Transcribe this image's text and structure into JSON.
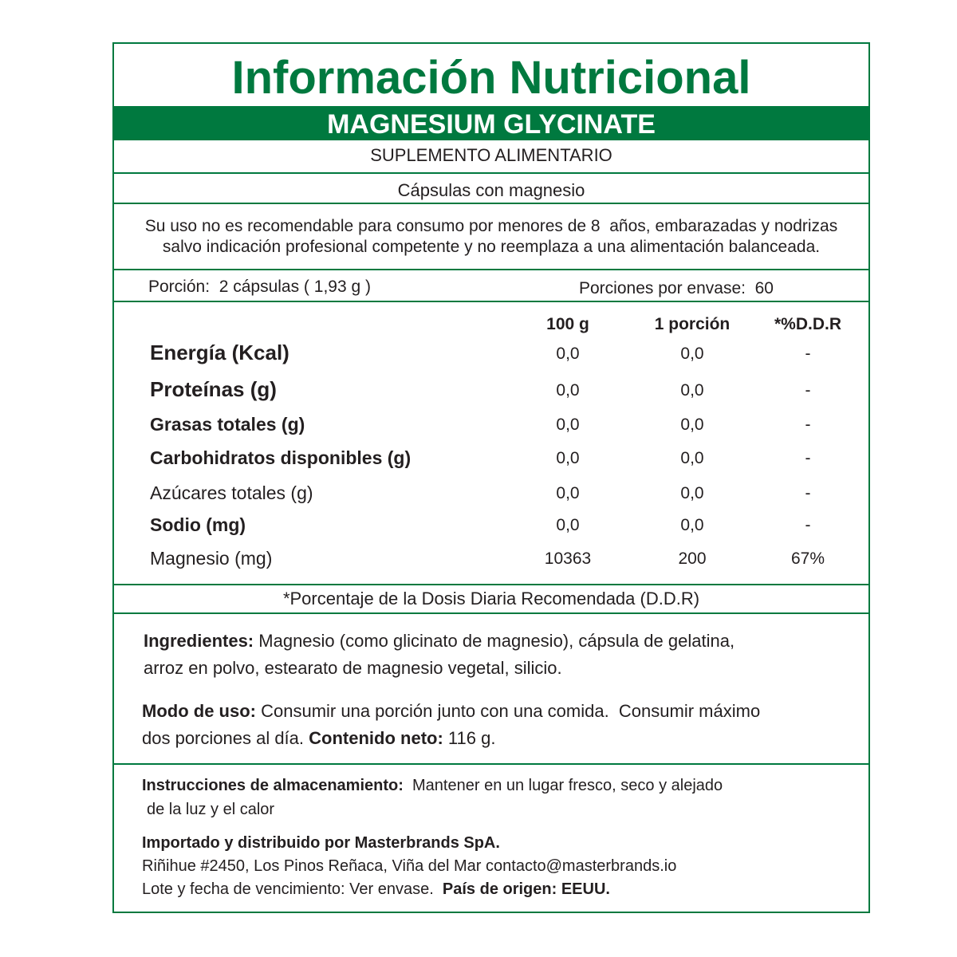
{
  "header": {
    "title": "Información Nutricional",
    "product": "MAGNESIUM GLYCINATE",
    "category": "SUPLEMENTO ALIMENTARIO",
    "subtitle": "Cápsulas con magnesio"
  },
  "warning": [
    "Su uso no es recomendable para consumo por menores de 8  años, embarazadas y nodrizas",
    "salvo indicación profesional competente y no reemplaza a una alimentación balanceada."
  ],
  "serving": {
    "portion": "Porción:  2 cápsulas ( 1,93 g )",
    "servings": "Porciones por envase:  60"
  },
  "table": {
    "columns": [
      "100 g",
      "1 porción",
      "*%D.D.R"
    ],
    "rows": [
      {
        "label": "Energía (Kcal)",
        "values": [
          "0,0",
          "0,0",
          "-"
        ]
      },
      {
        "label": "Proteínas (g)",
        "values": [
          "0,0",
          "0,0",
          "-"
        ]
      },
      {
        "label": "Grasas totales (g)",
        "values": [
          "0,0",
          "0,0",
          "-"
        ]
      },
      {
        "label": "Carbohidratos disponibles (g)",
        "values": [
          "0,0",
          "0,0",
          "-"
        ]
      },
      {
        "label": "Azúcares totales (g)",
        "values": [
          "0,0",
          "0,0",
          "-"
        ]
      },
      {
        "label": "Sodio (mg)",
        "values": [
          "0,0",
          "0,0",
          "-"
        ]
      },
      {
        "label": "Magnesio (mg)",
        "values": [
          "10363",
          "200",
          "67%"
        ]
      }
    ]
  },
  "footnote": "*Porcentaje de la Dosis Diaria Recomendada (D.D.R)",
  "ingredients": {
    "label": "Ingredientes:",
    "lines": [
      "Magnesio (como glicinato de magnesio), cápsula de gelatina,",
      "arroz en polvo, estearato de magnesio vegetal, silicio."
    ]
  },
  "usage": {
    "label": "Modo de uso:",
    "lines": [
      "Consumir una porción junto con una comida.  Consumir máximo",
      "dos porciones al día."
    ],
    "net_label": "Contenido neto:",
    "net_value": "116 g."
  },
  "storage": {
    "label": "Instrucciones de almacenamiento:",
    "lines": [
      "Mantener en un lugar fresco, seco y alejado",
      "de la luz y el calor"
    ]
  },
  "importer": {
    "title": "Importado y distribuido por Masterbrands SpA.",
    "address": "Riñihue #2450, Los Pinos Reñaca, Viña del Mar contacto@masterbrands.io",
    "lot": "Lote y fecha de vencimiento: Ver envase.",
    "origin": "País de origen: EEUU."
  }
}
